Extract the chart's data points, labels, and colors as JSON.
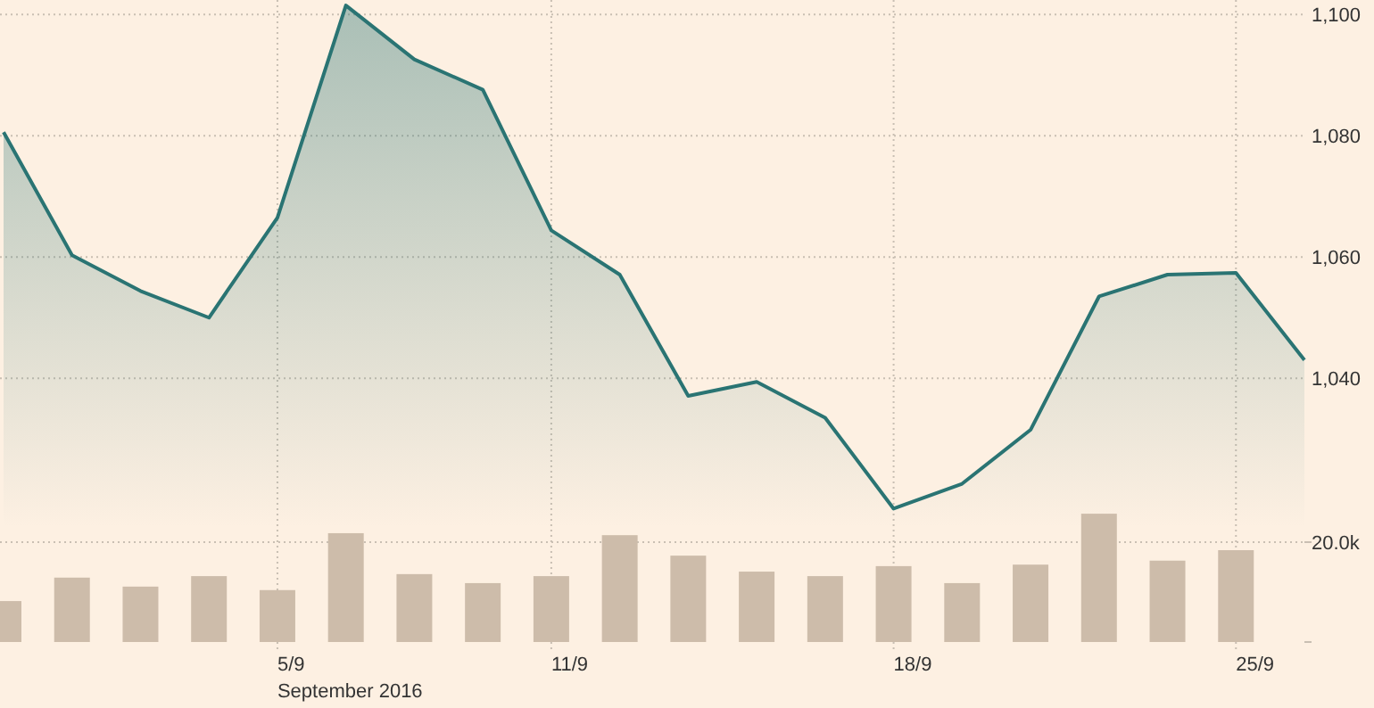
{
  "chart_data": {
    "type": "area",
    "categories": [
      null,
      null,
      null,
      null,
      "5/9",
      null,
      null,
      null,
      "11/9",
      null,
      null,
      null,
      null,
      "18/9",
      null,
      null,
      null,
      null,
      "25/9",
      null
    ],
    "xlabel": "September 2016",
    "series": [
      {
        "color": "#2a7473",
        "values": [
          1080.6,
          1060.3,
          1054.4,
          1050,
          1066.5,
          1101.5,
          1092.6,
          1087.6,
          1064.4,
          1057.1,
          1037.1,
          1039.4,
          1033.5,
          1018.5,
          1022.6,
          1031.5,
          1053.5,
          1057.1,
          1057.4,
          1043
        ]
      },
      {
        "type": "bar",
        "axis": "y2",
        "color": "#cdbcaa",
        "values": [
          8.2,
          12.9,
          11.1,
          13.2,
          10.4,
          21.8,
          13.6,
          11.8,
          13.2,
          21.4,
          17.3,
          14.1,
          13.2,
          15.2,
          11.8,
          15.5,
          25.7,
          16.3,
          18.4,
          null
        ]
      }
    ],
    "ylim": [
      996.5,
      1102.4
    ],
    "yticks": [
      {
        "value": 1040,
        "label": "1,040"
      },
      {
        "value": 1060,
        "label": "1,060"
      },
      {
        "value": 1080,
        "label": "1,080"
      },
      {
        "value": 1100,
        "label": "1,100"
      }
    ],
    "y2lim": [
      0,
      128.6
    ],
    "y2ticks": [
      {
        "value": 0,
        "label": null
      },
      {
        "value": 20,
        "label": "20.0k"
      }
    ],
    "grid": true
  }
}
